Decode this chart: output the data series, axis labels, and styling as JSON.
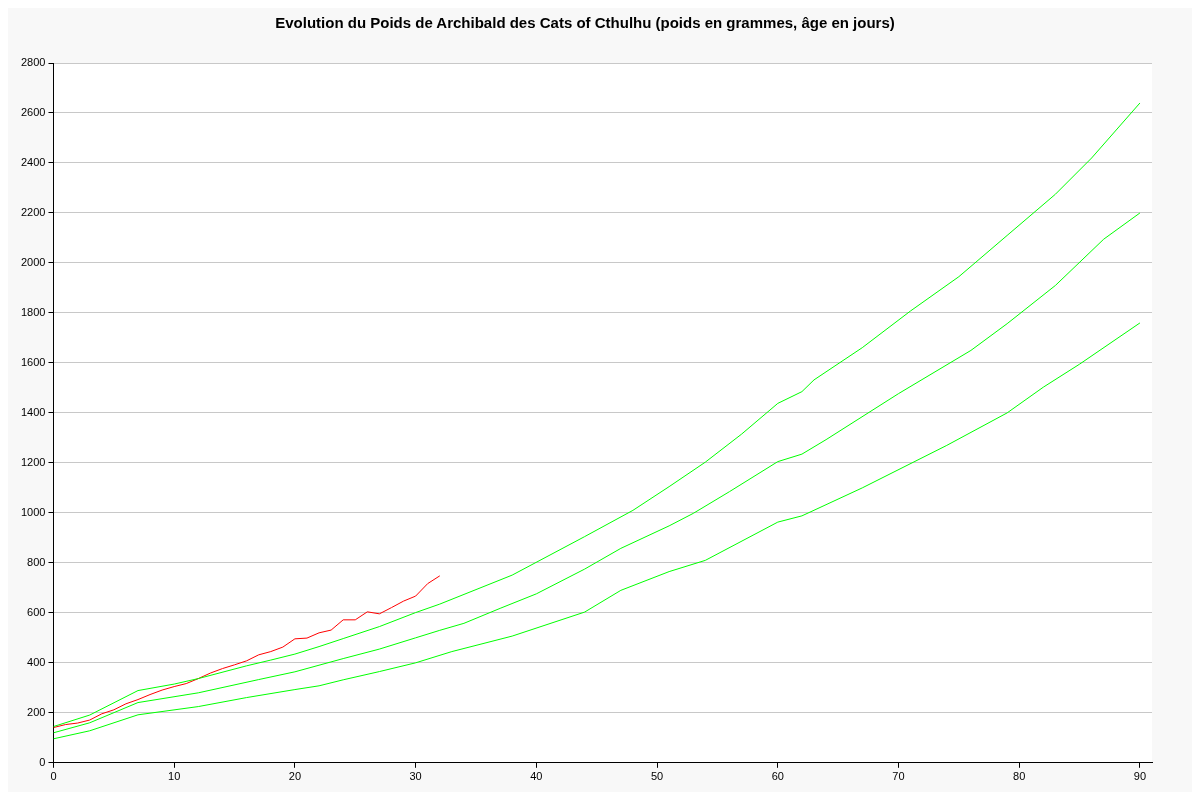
{
  "chart_data": {
    "type": "line",
    "title": "Evolution du Poids de Archibald des Cats of Cthulhu (poids en grammes, âge en jours)",
    "xlim": [
      0,
      91
    ],
    "xticks": [
      0,
      10,
      20,
      30,
      40,
      50,
      60,
      70,
      80,
      90
    ],
    "ylim": [
      0,
      2800
    ],
    "yticks": [
      0,
      200,
      400,
      600,
      800,
      1000,
      1200,
      1400,
      1600,
      1800,
      2000,
      2200,
      2400,
      2600,
      2800
    ],
    "grid": "y",
    "legend": false,
    "marker": "none",
    "line_style": "solid",
    "series": [
      {
        "color": "#00ff00",
        "x": [
          0,
          3,
          7,
          10,
          12,
          16,
          18,
          20,
          22,
          24,
          27,
          30,
          32,
          38,
          44,
          48,
          51,
          54,
          57,
          60,
          62,
          63,
          67,
          71,
          75,
          79,
          83,
          86,
          90
        ],
        "values": [
          145,
          191,
          289,
          315,
          337,
          388,
          411,
          435,
          465,
          497,
          545,
          601,
          635,
          751,
          905,
          1010,
          1105,
          1203,
          1315,
          1438,
          1485,
          1532,
          1661,
          1808,
          1945,
          2110,
          2275,
          2420,
          2640
        ]
      },
      {
        "color": "#00ff00",
        "x": [
          0,
          3,
          7,
          12,
          17,
          20,
          24,
          27,
          30,
          32,
          34,
          37,
          40,
          44,
          47,
          51,
          53,
          56,
          60,
          62,
          64,
          70,
          76,
          79,
          83,
          87,
          90
        ],
        "values": [
          120,
          160,
          241,
          280,
          333,
          364,
          417,
          455,
          500,
          530,
          558,
          618,
          676,
          775,
          858,
          948,
          998,
          1085,
          1205,
          1235,
          1293,
          1477,
          1650,
          1757,
          1910,
          2095,
          2200
        ]
      },
      {
        "color": "#00ff00",
        "x": [
          0,
          3,
          7,
          12,
          16,
          20,
          22,
          24,
          27,
          30,
          33,
          38,
          44,
          47,
          51,
          54,
          60,
          62,
          67,
          74,
          79,
          82,
          85,
          90
        ],
        "values": [
          96,
          128,
          192,
          225,
          261,
          293,
          308,
          332,
          365,
          400,
          445,
          507,
          603,
          690,
          765,
          810,
          963,
          988,
          1100,
          1270,
          1400,
          1503,
          1595,
          1760
        ]
      },
      {
        "color": "#ff0000",
        "x": [
          0,
          1,
          2,
          3,
          4,
          5,
          6,
          7,
          8,
          9,
          10,
          11,
          12,
          13,
          14,
          15,
          16,
          17,
          18,
          19,
          20,
          21,
          22,
          23,
          24,
          25,
          26,
          27,
          28,
          29,
          30,
          31,
          32
        ],
        "values": [
          141,
          153,
          159,
          171,
          196,
          212,
          236,
          253,
          273,
          291,
          305,
          317,
          337,
          359,
          377,
          392,
          408,
          432,
          445,
          463,
          496,
          499,
          520,
          531,
          572,
          572,
          604,
          596,
          621,
          647,
          667,
          717,
          748
        ]
      }
    ]
  }
}
